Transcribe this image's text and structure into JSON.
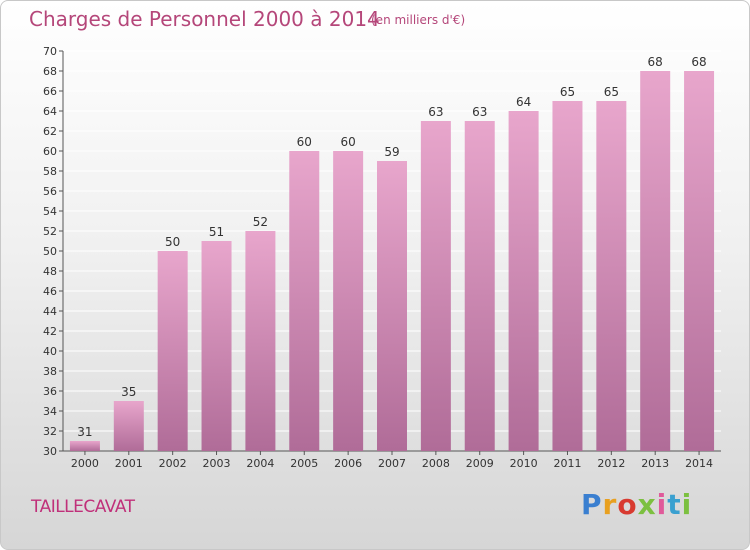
{
  "header": {
    "title": "Charges de Personnel 2000 à 2014",
    "subtitle": "(en milliers d'€)"
  },
  "commune": "TAILLECAVAT",
  "logo": {
    "text": "Proxiti",
    "letter_colors": [
      "#3a7fd0",
      "#e8a020",
      "#d83a30",
      "#7cc040",
      "#e05a9a",
      "#3aa0d0",
      "#7cc040"
    ]
  },
  "colors": {
    "bar_top": "#e8a6cc",
    "bar_bottom": "#b06c98",
    "grid": "#ffffff"
  },
  "chart_data": {
    "type": "bar",
    "categories": [
      "2000",
      "2001",
      "2002",
      "2003",
      "2004",
      "2005",
      "2006",
      "2007",
      "2008",
      "2009",
      "2010",
      "2011",
      "2012",
      "2013",
      "2014"
    ],
    "values": [
      31,
      35,
      50,
      51,
      52,
      60,
      60,
      59,
      63,
      63,
      64,
      65,
      65,
      68,
      68
    ],
    "ylim": [
      30,
      70
    ],
    "ytick_step": 2,
    "grid": true
  }
}
